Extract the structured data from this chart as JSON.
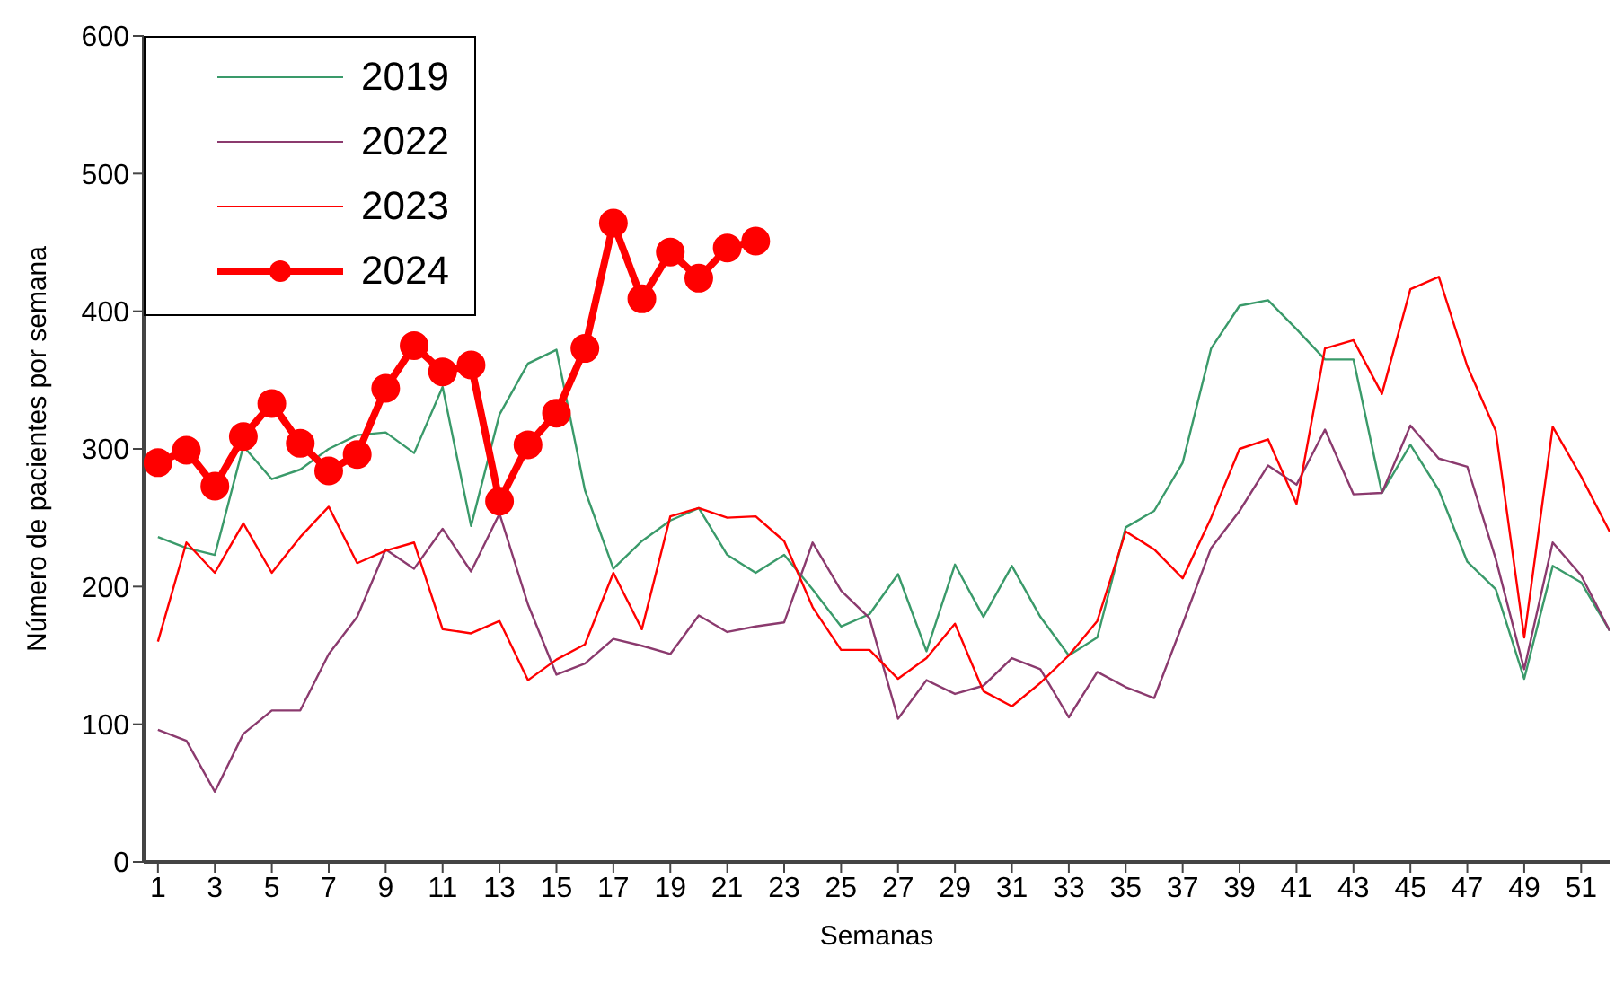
{
  "chart_data": {
    "type": "line",
    "xlabel": "Semanas",
    "ylabel": "Número de pacientes por semana",
    "x": [
      1,
      2,
      3,
      4,
      5,
      6,
      7,
      8,
      9,
      10,
      11,
      12,
      13,
      14,
      15,
      16,
      17,
      18,
      19,
      20,
      21,
      22,
      23,
      24,
      25,
      26,
      27,
      28,
      29,
      30,
      31,
      32,
      33,
      34,
      35,
      36,
      37,
      38,
      39,
      40,
      41,
      42,
      43,
      44,
      45,
      46,
      47,
      48,
      49,
      50,
      51,
      52
    ],
    "xlim": [
      0.5,
      52
    ],
    "xticks": [
      1,
      3,
      5,
      7,
      9,
      11,
      13,
      15,
      17,
      19,
      21,
      23,
      25,
      27,
      29,
      31,
      33,
      35,
      37,
      39,
      41,
      43,
      45,
      47,
      49,
      51
    ],
    "ylim": [
      0,
      600
    ],
    "yticks": [
      0,
      100,
      200,
      300,
      400,
      500,
      600
    ],
    "grid": false,
    "legend": "top left",
    "series": [
      {
        "name": "2019",
        "color": "#3a9a6a",
        "marker": "none",
        "values": [
          236,
          228,
          223,
          302,
          278,
          285,
          300,
          310,
          312,
          297,
          345,
          244,
          325,
          362,
          372,
          270,
          213,
          233,
          248,
          257,
          223,
          210,
          223,
          198,
          171,
          180,
          209,
          153,
          216,
          178,
          215,
          178,
          150,
          163,
          243,
          255,
          290,
          373,
          404,
          408,
          387,
          365,
          365,
          268,
          303,
          270,
          218,
          198,
          133,
          215,
          203,
          168
        ]
      },
      {
        "name": "2022",
        "color": "#8b3a6e",
        "marker": "none",
        "values": [
          96,
          88,
          51,
          93,
          110,
          110,
          151,
          178,
          227,
          213,
          242,
          211,
          253,
          187,
          136,
          144,
          162,
          157,
          151,
          179,
          167,
          171,
          174,
          232,
          197,
          177,
          104,
          132,
          122,
          128,
          148,
          140,
          105,
          138,
          127,
          119,
          173,
          228,
          255,
          288,
          274,
          314,
          267,
          268,
          317,
          293,
          287,
          220,
          140,
          232,
          208,
          168
        ]
      },
      {
        "name": "2023",
        "color": "#ff0000",
        "marker": "none",
        "values": [
          160,
          232,
          210,
          246,
          210,
          236,
          258,
          217,
          226,
          232,
          169,
          166,
          175,
          132,
          147,
          158,
          210,
          169,
          251,
          257,
          250,
          251,
          233,
          185,
          154,
          154,
          133,
          148,
          173,
          124,
          113,
          130,
          150,
          175,
          240,
          227,
          206,
          250,
          300,
          307,
          260,
          373,
          379,
          340,
          416,
          425,
          360,
          313,
          163,
          316,
          280,
          240
        ]
      },
      {
        "name": "2024",
        "color": "#ff0000",
        "marker": "circle",
        "values": [
          290,
          299,
          273,
          309,
          333,
          304,
          284,
          296,
          344,
          375,
          356,
          361,
          262,
          303,
          326,
          373,
          464,
          409,
          443,
          424,
          446,
          451,
          null,
          null,
          null,
          null,
          null,
          null,
          null,
          null,
          null,
          null,
          null,
          null,
          null,
          null,
          null,
          null,
          null,
          null,
          null,
          null,
          null,
          null,
          null,
          null,
          null,
          null,
          null,
          null,
          null,
          null
        ]
      }
    ]
  }
}
